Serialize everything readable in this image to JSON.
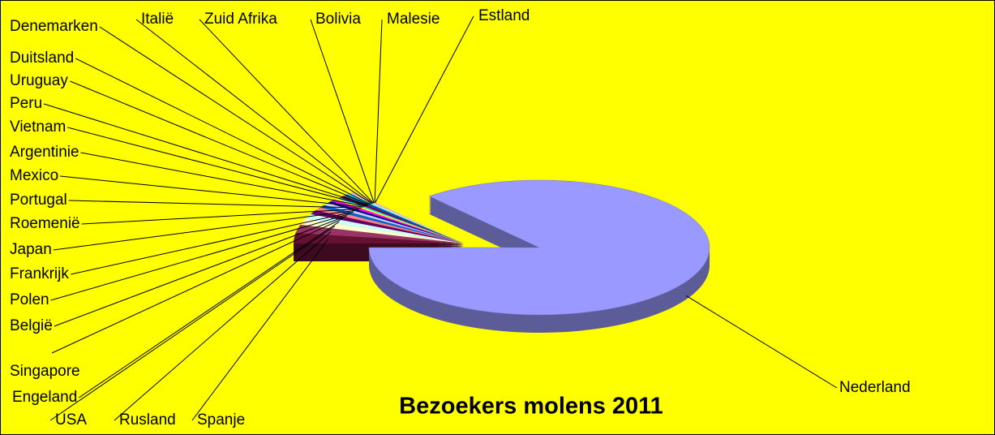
{
  "chart_data": {
    "type": "pie",
    "title": "Bezoekers molens 2011",
    "categories": [
      "Nederland",
      "Spanje",
      "Rusland",
      "USA",
      "Engeland",
      "Singapore",
      "België",
      "Polen",
      "Frankrijk",
      "Japan",
      "Roemenië",
      "Portugal",
      "Mexico",
      "Argentinie",
      "Vietnam",
      "Peru",
      "Uruguay",
      "Duitsland",
      "Denemarken",
      "Italië",
      "Zuid Afrika",
      "Bolivia",
      "Malesie",
      "Estland"
    ],
    "values": [
      86.2,
      2.5,
      2,
      1.5,
      1.2,
      1,
      0.8,
      0.7,
      0.6,
      0.5,
      0.5,
      0.4,
      0.3,
      0.3,
      0.2,
      0.2,
      0.2,
      0.2,
      0.2,
      0.1,
      0.1,
      0.1,
      0.1,
      0.1
    ],
    "colors": [
      "#9999ff",
      "#661133",
      "#993366",
      "#ffffcc",
      "#ccffff",
      "#660066",
      "#ff8080",
      "#0066cc",
      "#ccccff",
      "#000080",
      "#ff00ff",
      "#ffff00",
      "#00ffff",
      "#800080",
      "#800000",
      "#008080",
      "#0000ff",
      "#00ccff",
      "#ccffcc",
      "#ffff99",
      "#99ccff",
      "#ff99cc",
      "#cc99ff",
      "#ffcc99"
    ]
  }
}
